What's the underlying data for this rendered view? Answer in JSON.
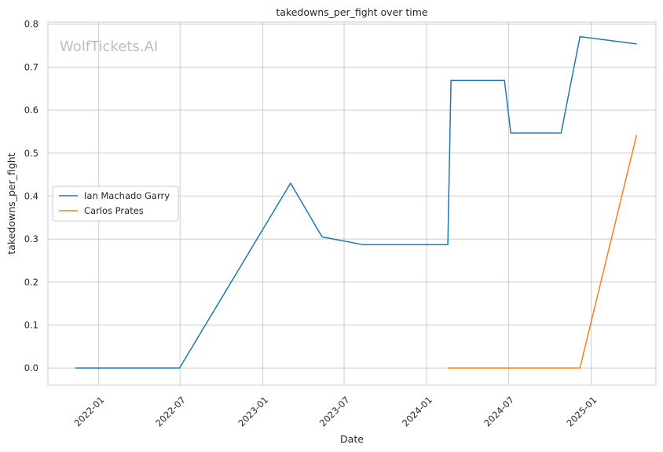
{
  "chart_data": {
    "type": "line",
    "title": "takedowns_per_fight over time",
    "xlabel": "Date",
    "ylabel": "takedowns_per_fight",
    "watermark": "WolfTickets.AI",
    "x_axis": {
      "kind": "date",
      "range": [
        "2021-09-10",
        "2025-05-25"
      ]
    },
    "ylim": [
      -0.04,
      0.805
    ],
    "grid": true,
    "legend_position": "center-left",
    "x_ticks": [
      {
        "date": "2022-01-01",
        "label": "2022-01"
      },
      {
        "date": "2022-07-01",
        "label": "2022-07"
      },
      {
        "date": "2023-01-01",
        "label": "2023-01"
      },
      {
        "date": "2023-07-01",
        "label": "2023-07"
      },
      {
        "date": "2024-01-01",
        "label": "2024-01"
      },
      {
        "date": "2024-07-01",
        "label": "2024-07"
      },
      {
        "date": "2025-01-01",
        "label": "2025-01"
      }
    ],
    "y_ticks": [
      {
        "value": 0.0,
        "label": "0.0"
      },
      {
        "value": 0.1,
        "label": "0.1"
      },
      {
        "value": 0.2,
        "label": "0.2"
      },
      {
        "value": 0.3,
        "label": "0.3"
      },
      {
        "value": 0.4,
        "label": "0.4"
      },
      {
        "value": 0.5,
        "label": "0.5"
      },
      {
        "value": 0.6,
        "label": "0.6"
      },
      {
        "value": 0.7,
        "label": "0.7"
      },
      {
        "value": 0.8,
        "label": "0.8"
      }
    ],
    "series": [
      {
        "name": "Ian Machado Garry",
        "color": "#1f77b4",
        "points": [
          {
            "x": "2021-11-10",
            "y": 0.0
          },
          {
            "x": "2022-06-30",
            "y": 0.0
          },
          {
            "x": "2023-03-04",
            "y": 0.43
          },
          {
            "x": "2023-05-13",
            "y": 0.305
          },
          {
            "x": "2023-08-12",
            "y": 0.287
          },
          {
            "x": "2024-02-17",
            "y": 0.287
          },
          {
            "x": "2024-02-24",
            "y": 0.669
          },
          {
            "x": "2024-06-22",
            "y": 0.669
          },
          {
            "x": "2024-07-06",
            "y": 0.547
          },
          {
            "x": "2024-10-26",
            "y": 0.547
          },
          {
            "x": "2024-12-07",
            "y": 0.771
          },
          {
            "x": "2025-04-12",
            "y": 0.754
          }
        ]
      },
      {
        "name": "Carlos Prates",
        "color": "#ff7f0e",
        "points": [
          {
            "x": "2024-02-17",
            "y": 0.0
          },
          {
            "x": "2024-12-07",
            "y": 0.0
          },
          {
            "x": "2025-04-12",
            "y": 0.542
          }
        ]
      }
    ]
  }
}
